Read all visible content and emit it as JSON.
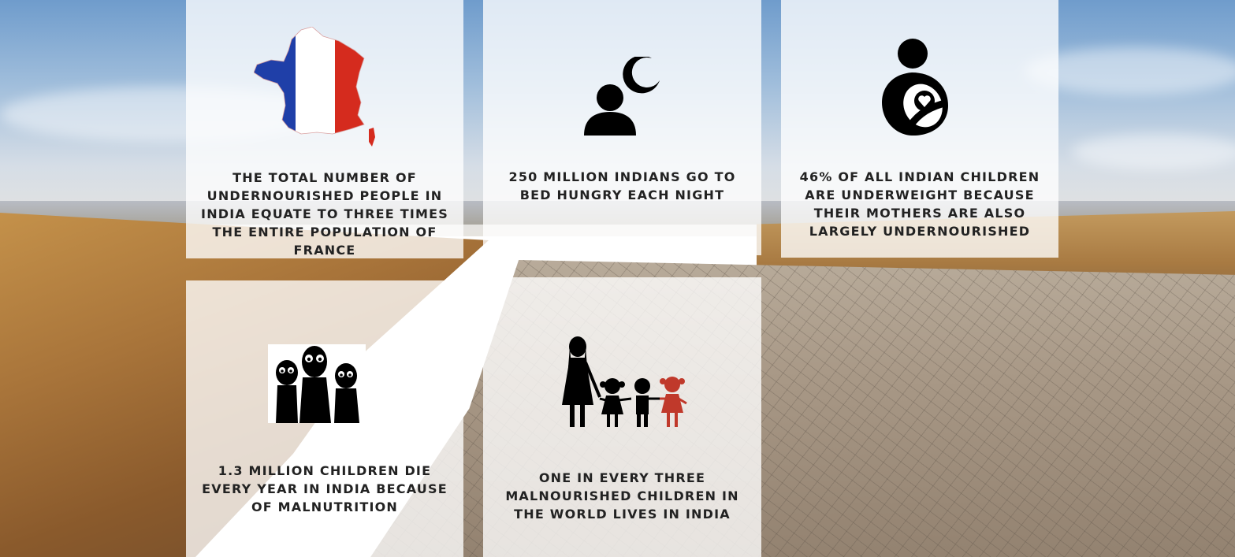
{
  "cards": [
    {
      "text": "THE TOTAL NUMBER OF UNDERNOURISHED PEOPLE IN INDIA EQUATE TO THREE  TIMES THE ENTIRE POPULATION OF FRANCE",
      "icon": "france-flag-map-icon"
    },
    {
      "text": "250 MILLION INDIANS GO TO BED HUNGRY EACH NIGHT",
      "icon": "person-moon-icon"
    },
    {
      "text": "46% OF ALL INDIAN CHILDREN ARE UNDERWEIGHT BECAUSE THEIR MOTHERS ARE ALSO LARGELY UNDERNOURISHED",
      "icon": "mother-child-icon"
    },
    {
      "text": "1.3 MILLION CHILDREN DIE EVERY YEAR IN INDIA BECAUSE OF MALNUTRITION",
      "icon": "starving-children-icon"
    },
    {
      "text": "ONE IN EVERY THREE MALNOURISHED CHILDREN IN THE WORLD LIVES IN INDIA",
      "icon": "family-icon"
    }
  ],
  "colors": {
    "card_bg": "#ffffffc7",
    "text": "#222222",
    "flag_blue": "#1f3fa8",
    "flag_red": "#d52b1e",
    "accent_red": "#c0392b"
  }
}
